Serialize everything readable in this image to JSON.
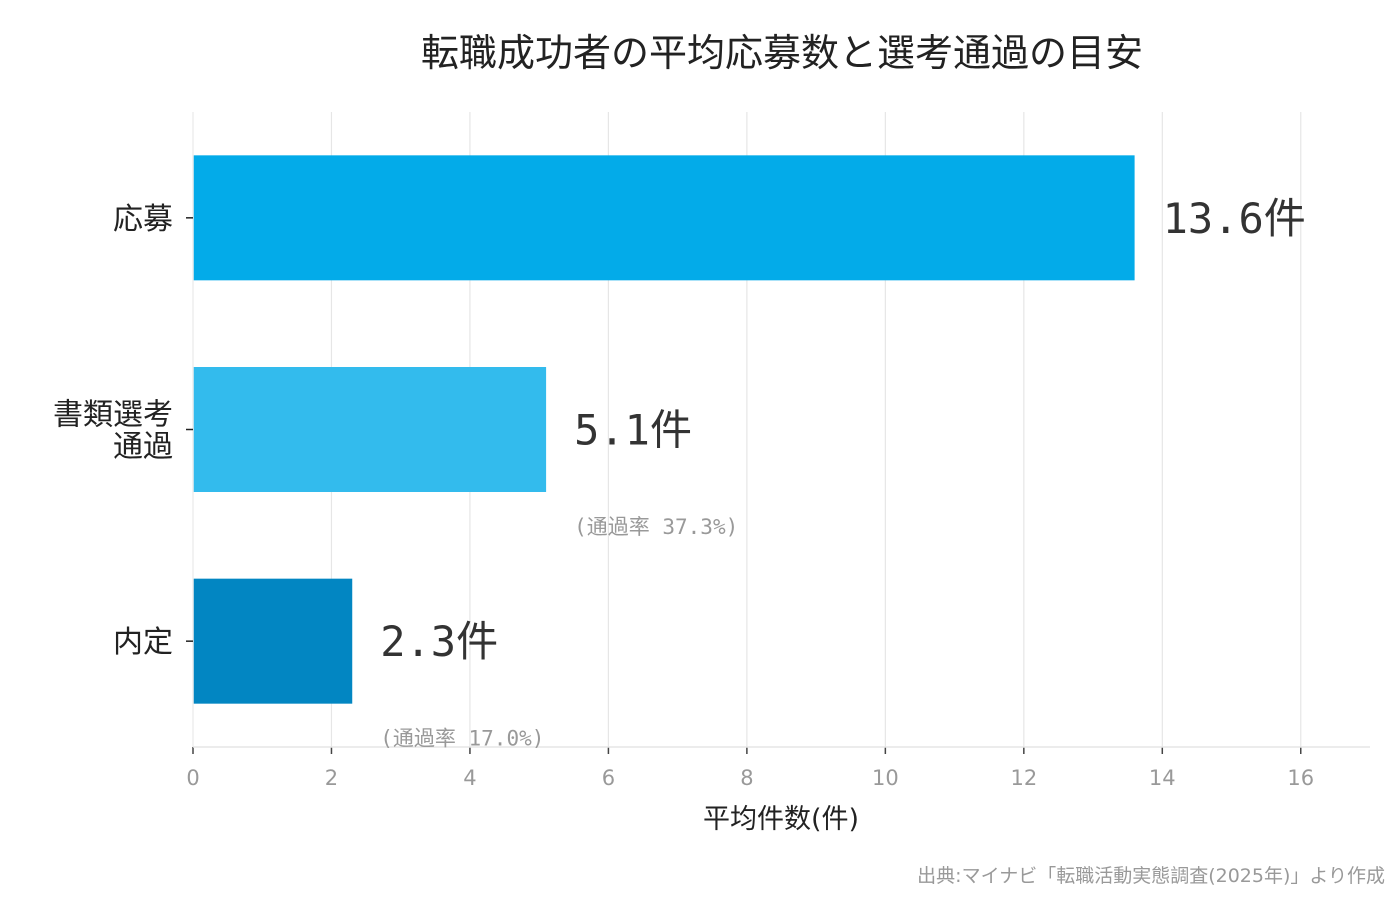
{
  "chart_data": {
    "type": "bar",
    "orientation": "horizontal",
    "title": "転職成功者の平均応募数と選考通過の目安",
    "categories": [
      {
        "lines": [
          "応募"
        ]
      },
      {
        "lines": [
          "書類選考",
          "通過"
        ]
      },
      {
        "lines": [
          "内定"
        ]
      }
    ],
    "values": [
      13.6,
      5.1,
      2.3
    ],
    "value_labels": [
      "13.6件",
      "5.1件",
      "2.3件"
    ],
    "rate_labels": [
      "",
      "(通過率 37.3%)",
      "(通過率 17.0%)"
    ],
    "colors": [
      "#03abe9",
      "#33bbed",
      "#0286c2"
    ],
    "xlabel": "平均件数(件)",
    "xlim": [
      0,
      17
    ],
    "xticks": [
      0,
      2,
      4,
      6,
      8,
      10,
      12,
      14,
      16
    ],
    "grid": true,
    "source": "出典:マイナビ「転職活動実態調査(2025年)」より作成"
  }
}
